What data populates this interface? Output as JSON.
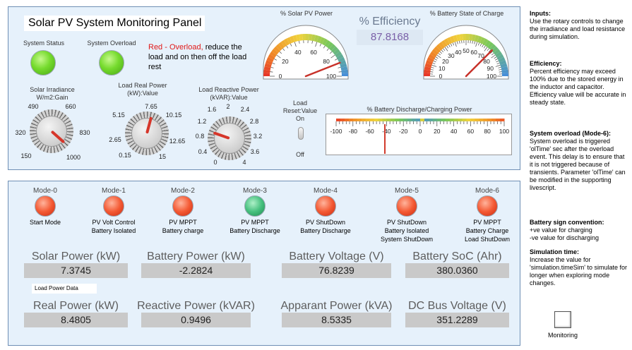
{
  "title": "Solar PV System Monitoring Panel",
  "status": {
    "system_status_label": "System Status",
    "system_overload_label": "System Overload",
    "overload_note_red": "Red - Overload,",
    "overload_note_rest": " reduce the load and on then off the load rest",
    "lamp_colors": {
      "green": "#76db2e",
      "red": "#f45a34",
      "teal": "#46c07e"
    }
  },
  "knobs": [
    {
      "id": "irradiance",
      "label": "Solar Irradiance W/m2:Gain",
      "ticks": [
        "150",
        "320",
        "490",
        "660",
        "830",
        "1000"
      ],
      "value": 990,
      "min": 150,
      "max": 1000
    },
    {
      "id": "real-power",
      "label": "Load Real Power (kW):Value",
      "ticks": [
        "0.15",
        "2.65",
        "5.15",
        "7.65",
        "10.15",
        "12.65",
        "15"
      ],
      "value": 8.4,
      "min": 0.15,
      "max": 15
    },
    {
      "id": "reactive-power",
      "label": "Load Reactive Power (kVAR):Value",
      "ticks": [
        "0",
        "0.4",
        "0.8",
        "1.2",
        "1.6",
        "2",
        "2.4",
        "2.8",
        "3.2",
        "3.6",
        "4"
      ],
      "value": 0.95,
      "min": 0,
      "max": 4
    }
  ],
  "load_reset": {
    "label": "Load Reset:Value",
    "on_label": "On",
    "off_label": "Off"
  },
  "gauges": {
    "solar": {
      "title": "% Solar PV Power",
      "ticks": [
        "0",
        "20",
        "40",
        "60",
        "80",
        "100"
      ],
      "value": 88
    },
    "battery": {
      "title": "% Battery State of Charge",
      "ticks": [
        "0",
        "10",
        "20",
        "30",
        "40",
        "50",
        "60",
        "70",
        "80",
        "90",
        "100"
      ],
      "value": 75
    }
  },
  "efficiency": {
    "title": "% Efficiency",
    "value": "87.8168"
  },
  "discharge_meter": {
    "title": "% Battery Discharge/Charging Power",
    "ticks": [
      "-100",
      "-80",
      "-60",
      "-40",
      "-20",
      "0",
      "20",
      "40",
      "60",
      "80",
      "100"
    ],
    "value": -42
  },
  "modes": [
    {
      "label": "Mode-0",
      "color": "red",
      "desc": [
        "Start Mode"
      ]
    },
    {
      "label": "Mode-1",
      "color": "red",
      "desc": [
        "PV Volt Control",
        "Battery Isolated"
      ]
    },
    {
      "label": "Mode-2",
      "color": "red",
      "desc": [
        "PV MPPT",
        "Battery charge"
      ]
    },
    {
      "label": "Mode-3",
      "color": "teal",
      "desc": [
        "PV MPPT",
        "Battery Discharge"
      ]
    },
    {
      "label": "Mode-4",
      "color": "red",
      "desc": [
        "PV ShutDown",
        "Battery Discharge"
      ]
    },
    {
      "label": "Mode-5",
      "color": "red",
      "desc": [
        "PV ShutDown",
        "Battery Isolated",
        "System ShutDown"
      ]
    },
    {
      "label": "Mode-6",
      "color": "red",
      "desc": [
        "PV MPPT",
        "Battery Charge",
        "Load ShutDown"
      ]
    }
  ],
  "readouts_row1": [
    {
      "label": "Solar Power (kW)",
      "value": "7.3745"
    },
    {
      "label": "Battery Power (kW)",
      "value": "-2.2824"
    },
    {
      "label": "Battery Voltage (V)",
      "value": "76.8239"
    },
    {
      "label": "Battery SoC (Ahr)",
      "value": "380.0360"
    }
  ],
  "load_power_label": "Load Power Data",
  "readouts_row2": [
    {
      "label": "Real Power (kW)",
      "value": "8.4805"
    },
    {
      "label": "Reactive Power (kVAR)",
      "value": "0.9496"
    },
    {
      "label": "Apparant Power (kVA)",
      "value": "8.5335"
    },
    {
      "label": "DC Bus Voltage (V)",
      "value": "351.2289"
    }
  ],
  "sidebar": {
    "inputs_h": "Inputs:",
    "inputs_t": "Use the rotary controls to change the irradiance and load resistance during simulation.",
    "eff_h": "Efficiency:",
    "eff_t": "Percent efficiency may exceed 100% due to the stored energy in the inductor and capacitor. Efficiency value will be accurate in steady state.",
    "ovl_h": "System overload (Mode-6):",
    "ovl_t": "System overload is triggered 'olTime' sec after the overload event. This delay is to ensure that it is not triggered because of transients.  Parameter 'olTime' can be modified in the supporting livescript.",
    "sign_h": "Battery sign convention:",
    "sign_t1": "+ve value for charging",
    "sign_t2": "-ve value for discharging",
    "sim_h": "Simulation time:",
    "sim_t": "Increase the value for 'simulation.timeSim' to simulate for longer when exploring mode changes."
  },
  "monitoring_label": "Monitoring"
}
